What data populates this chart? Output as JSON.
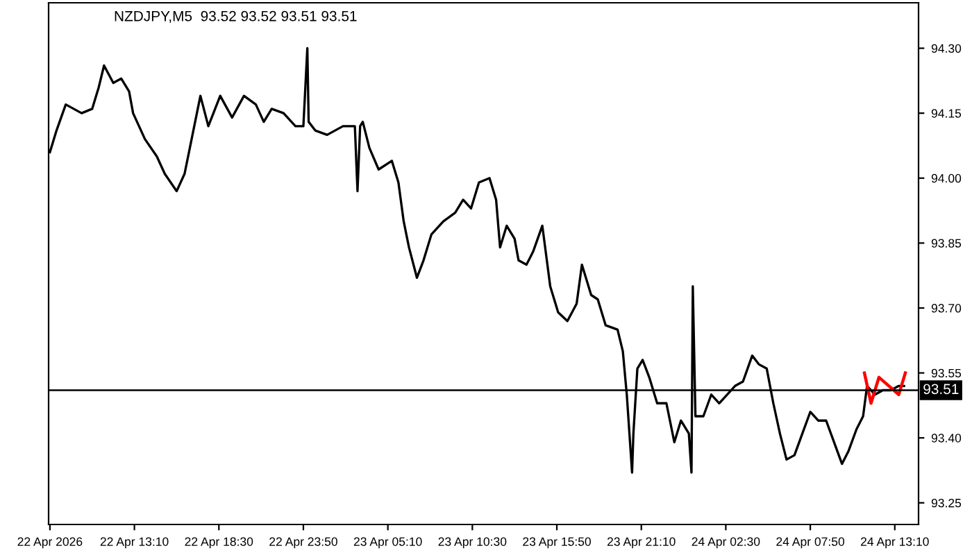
{
  "chart_data": {
    "type": "line",
    "title": "NZDJPY,M5  93.52 93.52 93.51 93.51",
    "grid": false,
    "legend": false,
    "marker": "none",
    "line_style": "solid",
    "xlim": [
      "2026-04-22T07:45",
      "2026-04-24T14:40"
    ],
    "xticks": [
      {
        "value": "2026-04-22T07:50",
        "label": "22 Apr 2026"
      },
      {
        "value": "2026-04-22T13:10",
        "label": "22 Apr 13:10"
      },
      {
        "value": "2026-04-22T18:30",
        "label": "22 Apr 18:30"
      },
      {
        "value": "2026-04-22T23:50",
        "label": "22 Apr 23:50"
      },
      {
        "value": "2026-04-23T05:10",
        "label": "23 Apr 05:10"
      },
      {
        "value": "2026-04-23T10:30",
        "label": "23 Apr 10:30"
      },
      {
        "value": "2026-04-23T15:50",
        "label": "23 Apr 15:50"
      },
      {
        "value": "2026-04-23T21:10",
        "label": "23 Apr 21:10"
      },
      {
        "value": "2026-04-24T02:30",
        "label": "24 Apr 02:30"
      },
      {
        "value": "2026-04-24T07:50",
        "label": "24 Apr 07:50"
      },
      {
        "value": "2026-04-24T13:10",
        "label": "24 Apr 13:10"
      }
    ],
    "ylim": [
      93.2,
      94.405
    ],
    "yticks": [
      {
        "value": 93.25,
        "label": "93.25"
      },
      {
        "value": 93.4,
        "label": "93.40"
      },
      {
        "value": 93.55,
        "label": "93.55"
      },
      {
        "value": 93.7,
        "label": "93.70"
      },
      {
        "value": 93.85,
        "label": "93.85"
      },
      {
        "value": 94.0,
        "label": "94.00"
      },
      {
        "value": 94.15,
        "label": "94.15"
      },
      {
        "value": 94.3,
        "label": "94.30"
      }
    ],
    "ref_lines": [
      {
        "axis": "y",
        "value": 93.51,
        "label": "93.51",
        "color": "#000000"
      }
    ],
    "series": [
      {
        "color": "#000000",
        "x": [
          "2026-04-22T07:50",
          "2026-04-22T08:15",
          "2026-04-22T08:50",
          "2026-04-22T09:50",
          "2026-04-22T10:30",
          "2026-04-22T10:55",
          "2026-04-22T11:15",
          "2026-04-22T11:50",
          "2026-04-22T12:20",
          "2026-04-22T12:50",
          "2026-04-22T13:05",
          "2026-04-22T13:50",
          "2026-04-22T14:35",
          "2026-04-22T15:05",
          "2026-04-22T15:50",
          "2026-04-22T16:20",
          "2026-04-22T16:50",
          "2026-04-22T17:20",
          "2026-04-22T17:50",
          "2026-04-22T18:35",
          "2026-04-22T19:20",
          "2026-04-22T20:05",
          "2026-04-22T20:50",
          "2026-04-22T21:20",
          "2026-04-22T21:50",
          "2026-04-22T22:35",
          "2026-04-22T23:20",
          "2026-04-22T23:50",
          "2026-04-23T00:05",
          "2026-04-23T00:10",
          "2026-04-23T00:35",
          "2026-04-23T01:20",
          "2026-04-23T02:20",
          "2026-04-23T03:05",
          "2026-04-23T03:15",
          "2026-04-23T03:25",
          "2026-04-23T03:35",
          "2026-04-23T04:00",
          "2026-04-23T04:35",
          "2026-04-23T05:25",
          "2026-04-23T05:50",
          "2026-04-23T06:10",
          "2026-04-23T06:30",
          "2026-04-23T07:00",
          "2026-04-23T07:25",
          "2026-04-23T07:55",
          "2026-04-23T08:40",
          "2026-04-23T09:25",
          "2026-04-23T09:55",
          "2026-04-23T10:25",
          "2026-04-23T10:55",
          "2026-04-23T11:35",
          "2026-04-23T12:00",
          "2026-04-23T12:15",
          "2026-04-23T12:40",
          "2026-04-23T13:10",
          "2026-04-23T13:25",
          "2026-04-23T13:55",
          "2026-04-23T14:20",
          "2026-04-23T14:55",
          "2026-04-23T15:25",
          "2026-04-23T15:55",
          "2026-04-23T16:30",
          "2026-04-23T17:05",
          "2026-04-23T17:25",
          "2026-04-23T18:00",
          "2026-04-23T18:25",
          "2026-04-23T18:55",
          "2026-04-23T19:40",
          "2026-04-23T20:00",
          "2026-04-23T20:15",
          "2026-04-23T20:35",
          "2026-04-23T20:40",
          "2026-04-23T20:55",
          "2026-04-23T21:15",
          "2026-04-23T21:40",
          "2026-04-23T22:10",
          "2026-04-23T22:45",
          "2026-04-23T23:15",
          "2026-04-23T23:40",
          "2026-04-24T00:10",
          "2026-04-24T00:20",
          "2026-04-24T00:25",
          "2026-04-24T00:35",
          "2026-04-24T01:05",
          "2026-04-24T01:35",
          "2026-04-24T02:05",
          "2026-04-24T02:35",
          "2026-04-24T03:05",
          "2026-04-24T03:35",
          "2026-04-24T04:10",
          "2026-04-24T04:35",
          "2026-04-24T05:05",
          "2026-04-24T05:30",
          "2026-04-24T05:55",
          "2026-04-24T06:20",
          "2026-04-24T06:50",
          "2026-04-24T07:20",
          "2026-04-24T07:50",
          "2026-04-24T08:20",
          "2026-04-24T08:50",
          "2026-04-24T09:20",
          "2026-04-24T09:50",
          "2026-04-24T10:15",
          "2026-04-24T10:45",
          "2026-04-24T11:10",
          "2026-04-24T11:25",
          "2026-04-24T11:55",
          "2026-04-24T12:25",
          "2026-04-24T12:55",
          "2026-04-24T13:25",
          "2026-04-24T13:45"
        ],
        "values": [
          94.06,
          94.11,
          94.17,
          94.15,
          94.16,
          94.21,
          94.26,
          94.22,
          94.23,
          94.2,
          94.15,
          94.09,
          94.05,
          94.01,
          93.97,
          94.01,
          94.1,
          94.19,
          94.12,
          94.19,
          94.14,
          94.19,
          94.17,
          94.13,
          94.16,
          94.15,
          94.12,
          94.12,
          94.3,
          94.13,
          94.11,
          94.1,
          94.12,
          94.12,
          93.97,
          94.12,
          94.13,
          94.07,
          94.02,
          94.04,
          93.99,
          93.9,
          93.84,
          93.77,
          93.81,
          93.87,
          93.9,
          93.92,
          93.95,
          93.93,
          93.99,
          94.0,
          93.95,
          93.84,
          93.89,
          93.86,
          93.81,
          93.8,
          93.83,
          93.89,
          93.75,
          93.69,
          93.67,
          93.71,
          93.8,
          93.73,
          93.72,
          93.66,
          93.65,
          93.6,
          93.5,
          93.32,
          93.41,
          93.56,
          93.58,
          93.54,
          93.48,
          93.48,
          93.39,
          93.44,
          93.41,
          93.32,
          93.75,
          93.45,
          93.45,
          93.5,
          93.48,
          93.5,
          93.52,
          93.53,
          93.59,
          93.57,
          93.56,
          93.48,
          93.41,
          93.35,
          93.36,
          93.41,
          93.46,
          93.44,
          93.44,
          93.39,
          93.34,
          93.37,
          93.42,
          93.45,
          93.52,
          93.5,
          93.51,
          93.51,
          93.52,
          93.52
        ]
      },
      {
        "color": "#ff0000",
        "x": [
          "2026-04-24T11:15",
          "2026-04-24T11:40",
          "2026-04-24T12:10",
          "2026-04-24T13:25",
          "2026-04-24T13:50"
        ],
        "values": [
          93.55,
          93.48,
          93.54,
          93.5,
          93.55
        ]
      }
    ]
  }
}
